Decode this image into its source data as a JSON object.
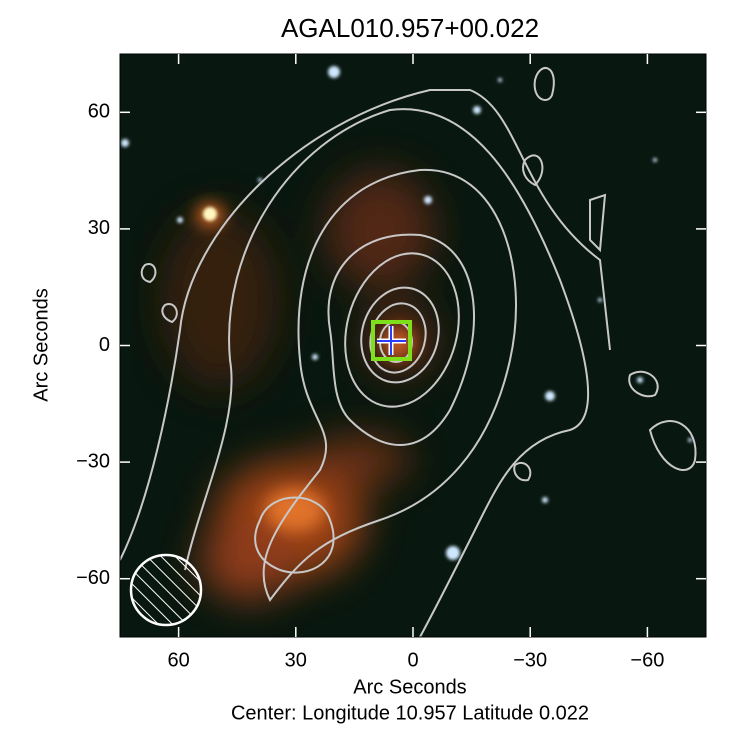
{
  "chart_data": {
    "type": "image",
    "title": "AGAL010.957+00.022",
    "xlabel": "Arc Seconds",
    "ylabel": "Arc Seconds",
    "caption": "Center:  Longitude 10.957 Latitude 0.022",
    "xlim": [
      75,
      -75
    ],
    "ylim": [
      -75,
      75
    ],
    "xticks": [
      60,
      30,
      0,
      {
        "value": -30,
        "label": "−30"
      },
      {
        "value": -60,
        "label": "−60"
      }
    ],
    "yticks": [
      {
        "value": -60,
        "label": "−60"
      },
      {
        "value": -30,
        "label": "−30"
      },
      0,
      30,
      60
    ]
  }
}
